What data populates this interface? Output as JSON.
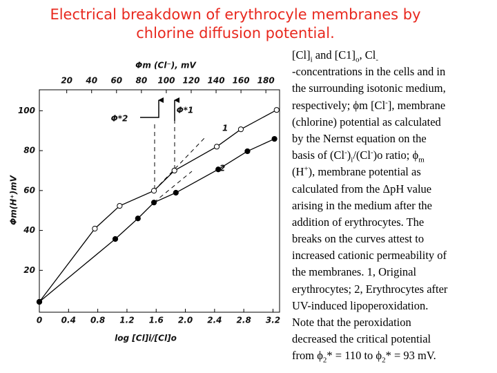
{
  "chart_data": {
    "type": "line",
    "title": [
      "Electrical breakdown of erythrocyle membranes by",
      "chlorine diffusion potential."
    ],
    "xlabel": "log [Cl]i/[Cl]o",
    "ylabel": "Φm(H⁺)mV",
    "x2label": "Φm (Cl⁻), mV",
    "xlim": [
      0,
      3.29
    ],
    "ylim": [
      -1,
      110.5
    ],
    "x2lim": [
      -2,
      191
    ],
    "xticks": [
      0,
      0.4,
      0.8,
      1.2,
      1.6,
      {
        "value": 2,
        "label": "2.0"
      },
      2.4,
      2.8,
      3.2
    ],
    "yticks": [
      20,
      40,
      60,
      80,
      100
    ],
    "x2ticks": [
      20,
      40,
      60,
      80,
      100,
      120,
      140,
      160,
      180
    ],
    "annotations": [
      "Φ*2",
      "Φ*1"
    ],
    "series": [
      {
        "name": "1",
        "color": "#000000",
        "marker": "open",
        "x": [
          0,
          0.76,
          1.1,
          1.57,
          1.85,
          2.43,
          2.76,
          3.25
        ],
        "values": [
          4.2,
          40.9,
          52.3,
          59.9,
          70,
          82,
          90.7,
          100.4
        ]
      },
      {
        "name": "2",
        "color": "#000000",
        "marker": "filled",
        "x": [
          0,
          1.04,
          1.35,
          1.57,
          1.87,
          2.45,
          2.85,
          3.22
        ],
        "values": [
          4.2,
          35.7,
          46,
          54,
          58.9,
          70.6,
          79.7,
          85.9
        ]
      }
    ]
  },
  "caption": {
    "lines": [
      [
        {
          "text": "[Cl]"
        },
        {
          "text": "i",
          "sub": true
        },
        {
          "text": " and [C1]"
        },
        {
          "text": "o",
          "sub": true
        },
        {
          "text": ", Cl"
        },
        {
          "text": "-",
          "sub": true
        }
      ],
      [
        {
          "text": "-concentrations in the cells and in"
        }
      ],
      [
        {
          "text": "the surrounding isotonic medium,"
        }
      ],
      [
        {
          "text": "respectively; ϕm [Cl"
        },
        {
          "text": "-",
          "sup": true
        },
        {
          "text": "], membrane"
        }
      ],
      [
        {
          "text": "(chlorine) potential as calculated"
        }
      ],
      [
        {
          "text": "by the Nernst equation on the"
        }
      ],
      [
        {
          "text": "basis of (Cl"
        },
        {
          "text": "-",
          "sup": true
        },
        {
          "text": ")"
        },
        {
          "text": "i",
          "sub": true
        },
        {
          "text": "/(Cl"
        },
        {
          "text": "-",
          "sup": true
        },
        {
          "text": ")o ratio; ϕ"
        },
        {
          "text": "m",
          "sub": true
        }
      ],
      [
        {
          "text": "(H"
        },
        {
          "text": "+",
          "sup": true
        },
        {
          "text": "), membrane potential as"
        }
      ],
      [
        {
          "text": "calculated from the ΔpH value"
        }
      ],
      [
        {
          "text": "arising in the medium after the"
        }
      ],
      [
        {
          "text": "addition of erythrocytes. The"
        }
      ],
      [
        {
          "text": "breaks on the curves attest to"
        }
      ],
      [
        {
          "text": "increased cationic permeability of"
        }
      ],
      [
        {
          "text": "the membranes. 1, Original"
        }
      ],
      [
        {
          "text": "erythrocytes; 2, Erythrocytes after"
        }
      ],
      [
        {
          "text": "UV-induced lipoperoxidation."
        }
      ],
      [
        {
          "text": "Note that the peroxidation"
        }
      ],
      [
        {
          "text": "decreased the critical potential"
        }
      ],
      [
        {
          "text": "from ϕ"
        },
        {
          "text": "2",
          "sub": true
        },
        {
          "text": "* = 110 to ϕ"
        },
        {
          "text": "2",
          "sub": true
        },
        {
          "text": "* = 93 mV."
        }
      ]
    ]
  }
}
